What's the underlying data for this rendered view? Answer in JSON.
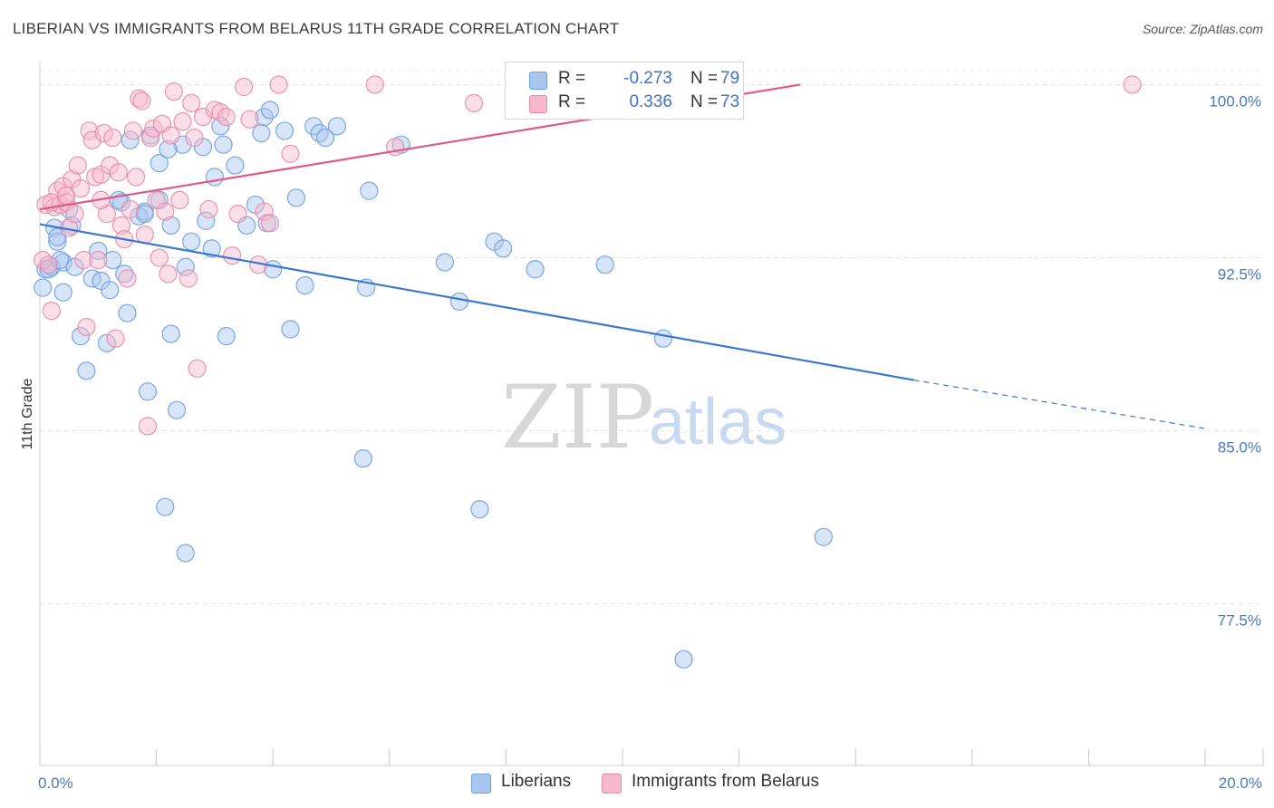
{
  "header": {
    "title": "LIBERIAN VS IMMIGRANTS FROM BELARUS 11TH GRADE CORRELATION CHART",
    "source": "Source: ZipAtlas.com"
  },
  "watermark": {
    "zip": "ZIP",
    "atlas": "atlas"
  },
  "legend": {
    "r_label": "R =",
    "n_label": "N =",
    "rows": [
      {
        "name": "Liberians",
        "r": "-0.273",
        "n": "79",
        "color": "#a9c6ef",
        "edge": "#6f9edc"
      },
      {
        "name": "Immigrants from Belarus",
        "r": "0.336",
        "n": "73",
        "color": "#f7b8cb",
        "edge": "#e88aa7"
      }
    ]
  },
  "chart_data": {
    "type": "scatter",
    "title": "LIBERIAN VS IMMIGRANTS FROM BELARUS 11TH GRADE CORRELATION CHART",
    "xlabel": "",
    "ylabel": "11th Grade",
    "xlim": [
      0,
      20
    ],
    "ylim": [
      70.5,
      101
    ],
    "x_tick_labels": [
      {
        "value": 0,
        "label": "0.0%"
      },
      {
        "value": 20,
        "label": "20.0%"
      }
    ],
    "x_minor_ticks": [
      0,
      2,
      4,
      6,
      8,
      10,
      12,
      14,
      16,
      18,
      20
    ],
    "y_ticks": [
      {
        "value": 100,
        "label": "100.0%"
      },
      {
        "value": 92.5,
        "label": "92.5%"
      },
      {
        "value": 85,
        "label": "85.0%"
      },
      {
        "value": 77.5,
        "label": "77.5%"
      }
    ],
    "grid": true,
    "series": [
      {
        "name": "Liberians",
        "color": "#a9c6ef",
        "edge": "#6f9edc",
        "trend": {
          "x0": 0,
          "y0": 93.95,
          "x1": 15,
          "y1": 87.2,
          "dash_to_x": 20,
          "dash_to_y": 85.1,
          "color": "#3a78d0"
        },
        "points": [
          [
            0.05,
            91.2
          ],
          [
            0.1,
            92.0
          ],
          [
            0.2,
            92.1
          ],
          [
            0.25,
            93.8
          ],
          [
            0.3,
            93.2
          ],
          [
            0.4,
            91.0
          ],
          [
            0.4,
            92.3
          ],
          [
            0.5,
            94.6
          ],
          [
            0.55,
            93.9
          ],
          [
            0.7,
            89.1
          ],
          [
            0.8,
            87.6
          ],
          [
            0.9,
            91.6
          ],
          [
            1.0,
            92.8
          ],
          [
            1.05,
            91.5
          ],
          [
            1.15,
            88.8
          ],
          [
            1.2,
            91.1
          ],
          [
            1.25,
            92.4
          ],
          [
            1.4,
            94.9
          ],
          [
            1.45,
            91.8
          ],
          [
            1.5,
            90.1
          ],
          [
            1.55,
            97.6
          ],
          [
            1.7,
            94.3
          ],
          [
            1.8,
            94.5
          ],
          [
            1.85,
            86.7
          ],
          [
            1.9,
            97.8
          ],
          [
            2.05,
            95.0
          ],
          [
            2.05,
            96.6
          ],
          [
            2.15,
            81.7
          ],
          [
            2.25,
            93.9
          ],
          [
            2.25,
            89.2
          ],
          [
            2.35,
            85.9
          ],
          [
            2.45,
            97.4
          ],
          [
            2.5,
            92.1
          ],
          [
            2.5,
            79.7
          ],
          [
            2.6,
            93.2
          ],
          [
            2.8,
            97.3
          ],
          [
            2.85,
            94.1
          ],
          [
            2.95,
            92.9
          ],
          [
            3.0,
            96.0
          ],
          [
            3.1,
            98.2
          ],
          [
            3.2,
            89.1
          ],
          [
            3.35,
            96.5
          ],
          [
            3.55,
            93.9
          ],
          [
            3.7,
            94.8
          ],
          [
            3.8,
            97.9
          ],
          [
            3.85,
            98.6
          ],
          [
            3.9,
            94.0
          ],
          [
            3.95,
            98.9
          ],
          [
            4.0,
            92.0
          ],
          [
            4.2,
            98.0
          ],
          [
            4.3,
            89.4
          ],
          [
            4.4,
            95.1
          ],
          [
            4.55,
            91.3
          ],
          [
            4.7,
            98.2
          ],
          [
            4.8,
            97.9
          ],
          [
            5.1,
            98.2
          ],
          [
            5.55,
            83.8
          ],
          [
            5.6,
            91.2
          ],
          [
            5.65,
            95.4
          ],
          [
            6.2,
            97.4
          ],
          [
            6.95,
            92.3
          ],
          [
            7.2,
            90.6
          ],
          [
            7.55,
            81.6
          ],
          [
            7.8,
            93.2
          ],
          [
            7.95,
            92.9
          ],
          [
            8.5,
            92.0
          ],
          [
            9.7,
            92.2
          ],
          [
            10.7,
            89.0
          ],
          [
            11.05,
            75.1
          ],
          [
            13.45,
            80.4
          ],
          [
            0.35,
            92.4
          ],
          [
            0.6,
            92.1
          ],
          [
            0.15,
            92.0
          ],
          [
            0.3,
            93.4
          ],
          [
            1.35,
            95.0
          ],
          [
            1.8,
            94.4
          ],
          [
            3.15,
            97.4
          ],
          [
            4.9,
            97.7
          ],
          [
            2.2,
            97.2
          ]
        ]
      },
      {
        "name": "Immigrants from Belarus",
        "color": "#f7b8cb",
        "edge": "#e88aa7",
        "trend": {
          "x0": 0,
          "y0": 94.6,
          "x1": 13.05,
          "y1": 100.0,
          "color": "#e05a85"
        },
        "points": [
          [
            0.05,
            92.4
          ],
          [
            0.1,
            94.8
          ],
          [
            0.15,
            92.2
          ],
          [
            0.2,
            90.2
          ],
          [
            0.25,
            94.7
          ],
          [
            0.3,
            95.4
          ],
          [
            0.35,
            94.8
          ],
          [
            0.4,
            95.6
          ],
          [
            0.45,
            94.9
          ],
          [
            0.5,
            93.8
          ],
          [
            0.55,
            95.9
          ],
          [
            0.6,
            94.4
          ],
          [
            0.65,
            96.5
          ],
          [
            0.7,
            95.5
          ],
          [
            0.75,
            92.4
          ],
          [
            0.8,
            89.5
          ],
          [
            0.85,
            98.0
          ],
          [
            0.9,
            97.6
          ],
          [
            0.95,
            96.0
          ],
          [
            1.0,
            92.4
          ],
          [
            1.05,
            96.1
          ],
          [
            1.1,
            97.9
          ],
          [
            1.15,
            94.4
          ],
          [
            1.2,
            96.5
          ],
          [
            1.25,
            97.7
          ],
          [
            1.3,
            89.0
          ],
          [
            1.35,
            96.2
          ],
          [
            1.4,
            93.9
          ],
          [
            1.45,
            93.3
          ],
          [
            1.5,
            91.6
          ],
          [
            1.55,
            94.6
          ],
          [
            1.6,
            98.0
          ],
          [
            1.65,
            96.0
          ],
          [
            1.7,
            99.4
          ],
          [
            1.75,
            99.3
          ],
          [
            1.8,
            93.5
          ],
          [
            1.85,
            85.2
          ],
          [
            1.9,
            97.7
          ],
          [
            1.95,
            98.1
          ],
          [
            2.0,
            95.0
          ],
          [
            2.05,
            92.5
          ],
          [
            2.1,
            98.3
          ],
          [
            2.15,
            94.5
          ],
          [
            2.2,
            91.8
          ],
          [
            2.25,
            97.8
          ],
          [
            2.3,
            99.7
          ],
          [
            2.4,
            95.0
          ],
          [
            2.45,
            98.4
          ],
          [
            2.55,
            91.6
          ],
          [
            2.6,
            99.2
          ],
          [
            2.7,
            87.7
          ],
          [
            2.8,
            98.6
          ],
          [
            2.9,
            94.6
          ],
          [
            3.0,
            98.9
          ],
          [
            3.1,
            98.8
          ],
          [
            3.2,
            98.6
          ],
          [
            3.3,
            92.6
          ],
          [
            3.4,
            94.4
          ],
          [
            3.5,
            99.9
          ],
          [
            3.6,
            98.5
          ],
          [
            3.75,
            92.2
          ],
          [
            3.85,
            94.5
          ],
          [
            3.95,
            94.0
          ],
          [
            4.1,
            100.0
          ],
          [
            4.3,
            97.0
          ],
          [
            5.75,
            100.0
          ],
          [
            6.1,
            97.3
          ],
          [
            7.45,
            99.2
          ],
          [
            18.75,
            100.0
          ],
          [
            0.2,
            94.9
          ],
          [
            0.45,
            95.2
          ],
          [
            1.05,
            95.0
          ],
          [
            2.65,
            97.7
          ]
        ]
      }
    ]
  }
}
